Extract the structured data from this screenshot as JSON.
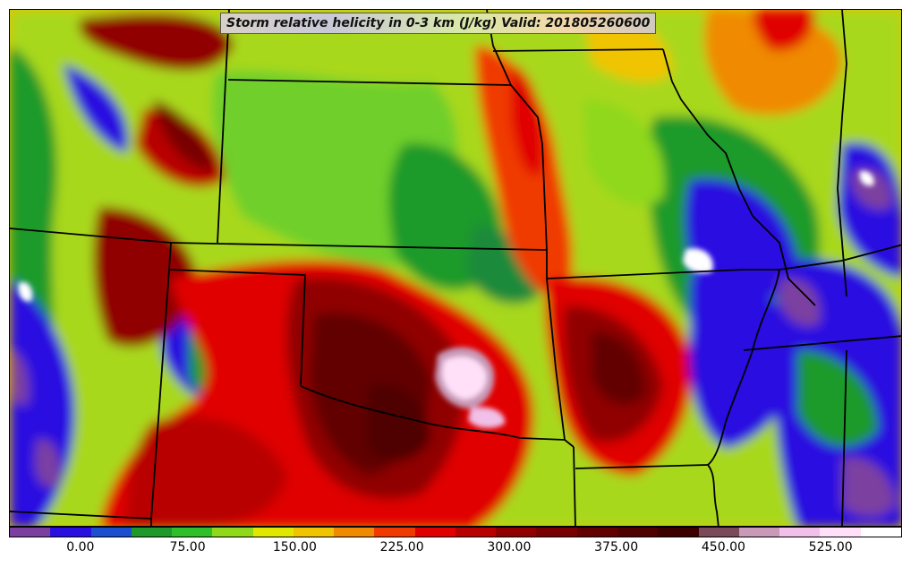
{
  "map": {
    "title": "Storm relative helicity in 0-3 km (J/kg) Valid: 201805260600",
    "variable": "Storm relative helicity in 0-3 km",
    "units": "J/kg",
    "valid": "201805260600",
    "colorbar": {
      "colors": [
        "#7b3fa0",
        "#2a10e0",
        "#1a4fd0",
        "#1f9a2a",
        "#2fbf2a",
        "#8fd81a",
        "#e0e800",
        "#f0c400",
        "#f08a00",
        "#f03a00",
        "#e00000",
        "#b80000",
        "#900000",
        "#780000",
        "#620000",
        "#500000",
        "#3c0000",
        "#7a4a5a",
        "#c89ab8",
        "#f0c0e8",
        "#ffe0f8",
        "#ffffff"
      ],
      "tick_labels": [
        "0.00",
        "75.00",
        "150.00",
        "225.00",
        "300.00",
        "375.00",
        "450.00",
        "525.00"
      ],
      "tick_values": [
        0,
        75,
        150,
        225,
        300,
        375,
        450,
        525
      ],
      "min": -50,
      "max": 575,
      "step": 25
    }
  }
}
